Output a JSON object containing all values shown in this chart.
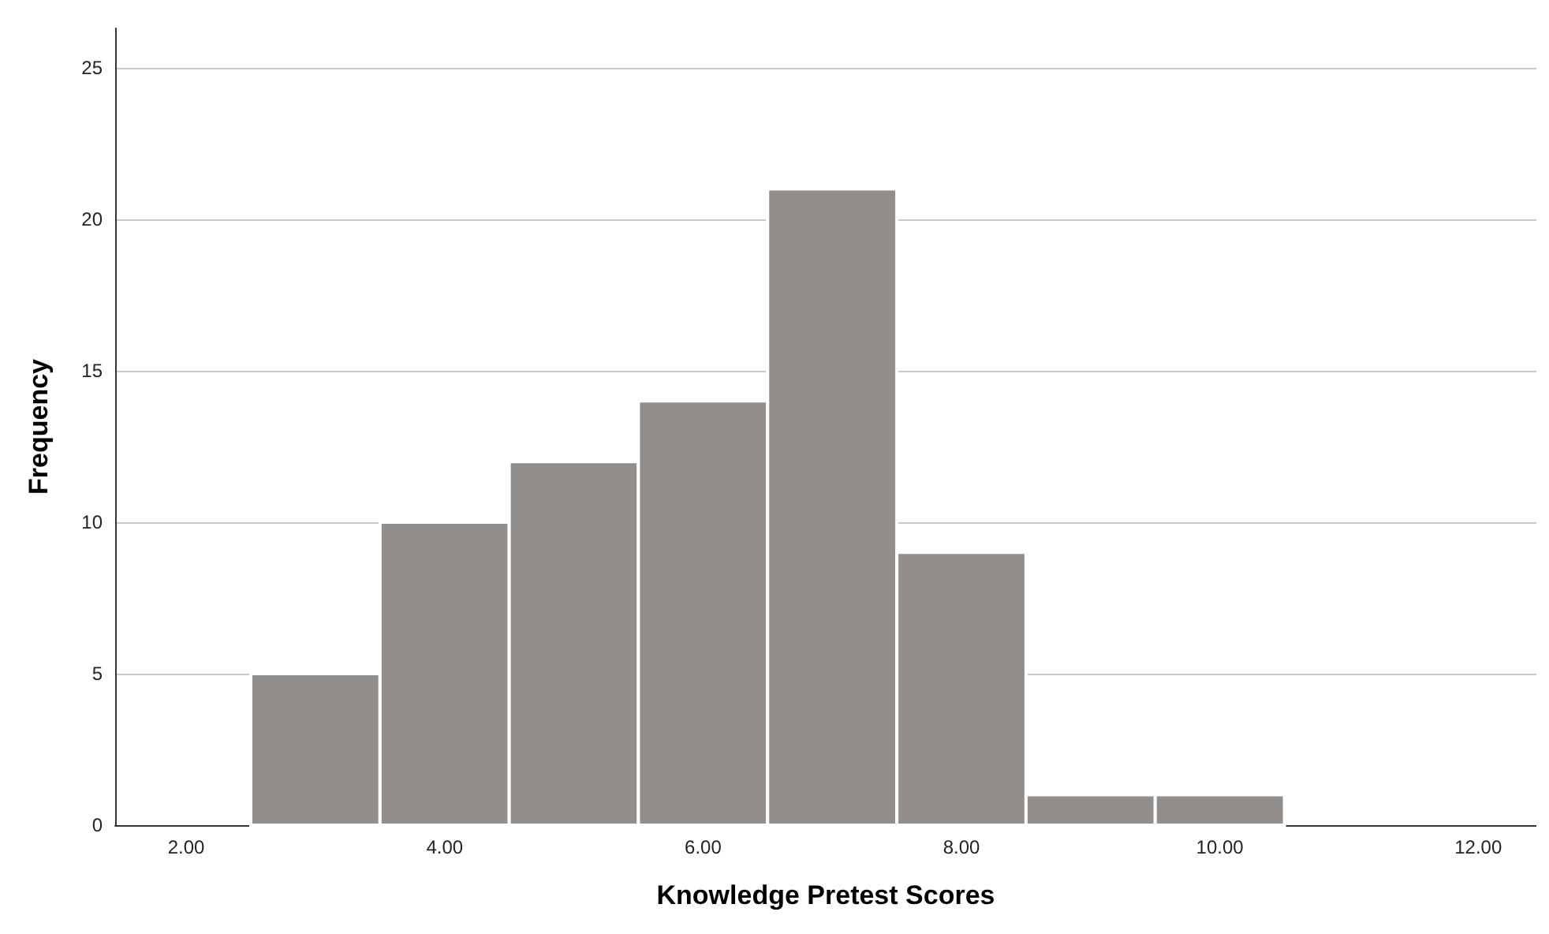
{
  "chart_data": {
    "type": "histogram",
    "xlabel": "Knowledge Pretest Scores",
    "ylabel": "Frequency",
    "bins": [
      2.5,
      3.5,
      4.5,
      5.5,
      6.5,
      7.5,
      8.5,
      9.5,
      10.5
    ],
    "values": [
      5,
      10,
      12,
      14,
      21,
      9,
      1,
      1
    ],
    "color": "#918e8c",
    "xlim": [
      1.45,
      12.45
    ],
    "xticks": [
      {
        "value": 2,
        "label": "2.00"
      },
      {
        "value": 4,
        "label": "4.00"
      },
      {
        "value": 6,
        "label": "6.00"
      },
      {
        "value": 8,
        "label": "8.00"
      },
      {
        "value": 10,
        "label": "10.00"
      },
      {
        "value": 12,
        "label": "12.00"
      }
    ],
    "ylim": [
      0,
      26.3
    ],
    "yticks": [
      0,
      5,
      10,
      15,
      20,
      25
    ],
    "grid": "y"
  }
}
